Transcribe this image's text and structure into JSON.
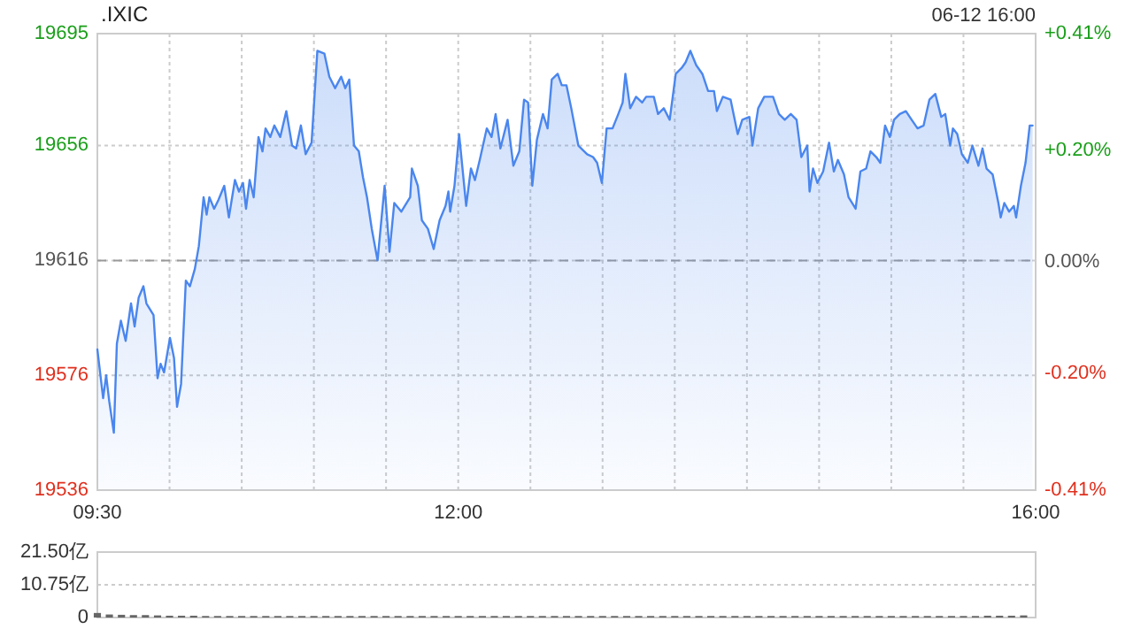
{
  "chart_data": [
    {
      "type": "area",
      "title": ".IXIC",
      "subtitle": "06-12 16:00",
      "xlim": [
        9.5,
        16
      ],
      "xticks": [
        {
          "value": 9.5,
          "label": "09:30"
        },
        {
          "value": 10,
          "label": null
        },
        {
          "value": 10.5,
          "label": null
        },
        {
          "value": 11,
          "label": null
        },
        {
          "value": 11.5,
          "label": null
        },
        {
          "value": 12,
          "label": "12:00"
        },
        {
          "value": 12.5,
          "label": null
        },
        {
          "value": 13,
          "label": null
        },
        {
          "value": 13.5,
          "label": null
        },
        {
          "value": 14,
          "label": null
        },
        {
          "value": 14.5,
          "label": null
        },
        {
          "value": 15,
          "label": null
        },
        {
          "value": 15.5,
          "label": null
        },
        {
          "value": 16,
          "label": "16:00"
        }
      ],
      "ylim": [
        19536,
        19695
      ],
      "yticks": [
        19536,
        19576,
        19616,
        19656,
        19695
      ],
      "y2lim": [
        -0.41,
        0.41
      ],
      "y2ticks": [
        {
          "value": -0.41,
          "label": "-0.41%"
        },
        {
          "value": -0.2,
          "label": "-0.20%"
        },
        {
          "value": 0,
          "label": "0.00%"
        },
        {
          "value": 0.2,
          "label": "+0.20%"
        },
        {
          "value": 0.41,
          "label": "+0.41%"
        }
      ],
      "grid": true,
      "ref_lines": [
        {
          "axis": "y",
          "value": 19616,
          "line_style": "dashed",
          "color": "#999999"
        }
      ],
      "series": [
        {
          "color": "#4a86ee",
          "x": [
            9.5,
            9.54,
            9.561,
            9.582,
            9.614,
            9.635,
            9.663,
            9.696,
            9.733,
            9.758,
            9.786,
            9.819,
            9.84,
            9.889,
            9.917,
            9.938,
            9.962,
            10.003,
            10.031,
            10.052,
            10.08,
            10.113,
            10.141,
            10.175,
            10.203,
            10.236,
            10.257,
            10.276,
            10.309,
            10.338,
            10.379,
            10.411,
            10.453,
            10.481,
            10.509,
            10.53,
            10.555,
            10.583,
            10.616,
            10.644,
            10.665,
            10.698,
            10.726,
            10.767,
            10.809,
            10.849,
            10.877,
            10.91,
            10.943,
            10.984,
            11.024,
            11.073,
            11.107,
            11.147,
            11.189,
            11.217,
            11.245,
            11.278,
            11.311,
            11.34,
            11.368,
            11.401,
            11.441,
            11.49,
            11.524,
            11.557,
            11.606,
            11.667,
            11.679,
            11.72,
            11.748,
            11.79,
            11.83,
            11.871,
            11.912,
            11.932,
            11.944,
            11.974,
            12.006,
            12.055,
            12.088,
            12.116,
            12.149,
            12.198,
            12.231,
            12.259,
            12.292,
            12.342,
            12.382,
            12.423,
            12.456,
            12.484,
            12.513,
            12.545,
            12.587,
            12.619,
            12.648,
            12.689,
            12.717,
            12.75,
            12.783,
            12.832,
            12.893,
            12.934,
            12.962,
            12.995,
            13.028,
            13.069,
            13.109,
            13.139,
            13.158,
            13.191,
            13.232,
            13.274,
            13.302,
            13.355,
            13.384,
            13.424,
            13.465,
            13.507,
            13.547,
            13.575,
            13.608,
            13.649,
            13.691,
            13.731,
            13.772,
            13.792,
            13.833,
            13.887,
            13.936,
            13.968,
            14.017,
            14.038,
            14.078,
            14.12,
            14.181,
            14.222,
            14.262,
            14.304,
            14.344,
            14.377,
            14.418,
            14.434,
            14.458,
            14.488,
            14.528,
            14.569,
            14.602,
            14.63,
            14.672,
            14.704,
            14.753,
            14.786,
            14.826,
            14.856,
            14.896,
            14.924,
            14.957,
            14.99,
            15.019,
            15.059,
            15.101,
            15.141,
            15.182,
            15.224,
            15.264,
            15.305,
            15.346,
            15.374,
            15.408,
            15.427,
            15.457,
            15.489,
            15.53,
            15.562,
            15.604,
            15.632,
            15.66,
            15.702,
            15.742,
            15.758,
            15.783,
            15.816,
            15.849,
            15.865,
            15.898,
            15.93,
            15.959,
            15.979
          ],
          "values": [
            19585,
            19568,
            19576,
            19567,
            19556,
            19587,
            19595,
            19588,
            19601,
            19593,
            19603,
            19607,
            19601,
            19597,
            19575,
            19580,
            19577,
            19589,
            19582,
            19565,
            19573,
            19609,
            19607,
            19613,
            19621,
            19638,
            19632,
            19638,
            19634,
            19637,
            19642,
            19631,
            19644,
            19640,
            19643,
            19634,
            19644,
            19638,
            19659,
            19654,
            19662,
            19659,
            19663,
            19659,
            19668,
            19656,
            19655,
            19663,
            19653,
            19657,
            19689,
            19688,
            19680,
            19676,
            19680,
            19676,
            19679,
            19656,
            19654,
            19645,
            19638,
            19627,
            19616,
            19642,
            19619,
            19636,
            19633,
            19638,
            19648,
            19642,
            19630,
            19627,
            19620,
            19630,
            19635,
            19640,
            19633,
            19642,
            19660,
            19635,
            19648,
            19644,
            19651,
            19662,
            19659,
            19667,
            19655,
            19665,
            19649,
            19654,
            19672,
            19671,
            19642,
            19658,
            19667,
            19662,
            19679,
            19681,
            19677,
            19677,
            19669,
            19656,
            19653,
            19652,
            19650,
            19643,
            19662,
            19662,
            19667,
            19671,
            19681,
            19669,
            19673,
            19671,
            19673,
            19673,
            19667,
            19669,
            19665,
            19681,
            19683,
            19685,
            19689,
            19684,
            19681,
            19675,
            19675,
            19668,
            19673,
            19672,
            19660,
            19665,
            19666,
            19656,
            19669,
            19673,
            19673,
            19667,
            19665,
            19667,
            19665,
            19652,
            19656,
            19640,
            19648,
            19643,
            19647,
            19657,
            19647,
            19651,
            19646,
            19638,
            19634,
            19647,
            19648,
            19654,
            19652,
            19650,
            19663,
            19659,
            19665,
            19667,
            19668,
            19665,
            19662,
            19663,
            19672,
            19674,
            19666,
            19667,
            19656,
            19662,
            19660,
            19653,
            19650,
            19656,
            19649,
            19655,
            19648,
            19646,
            19636,
            19631,
            19636,
            19633,
            19635,
            19631,
            19642,
            19650,
            19663,
            19663
          ]
        }
      ]
    },
    {
      "type": "bar",
      "xlim": [
        9.5,
        16
      ],
      "ylim": [
        0,
        21.5
      ],
      "yticks": [
        0,
        {
          "value": 10.75,
          "label": "10.75亿"
        },
        {
          "value": 21.5,
          "label": "21.50亿"
        }
      ],
      "grid": "y",
      "tick_labels": "y",
      "series": [
        {
          "color": "#666666",
          "x": [
            9.5,
            9.583,
            9.667,
            9.75,
            9.833,
            9.917,
            10,
            10.083,
            10.167,
            10.25,
            10.333,
            10.417,
            10.5,
            10.583,
            10.667,
            10.75,
            10.833,
            10.917,
            11,
            11.083,
            11.167,
            11.25,
            11.333,
            11.417,
            11.5,
            11.583,
            11.667,
            11.75,
            11.833,
            11.917,
            12,
            12.083,
            12.167,
            12.25,
            12.333,
            12.417,
            12.5,
            12.583,
            12.667,
            12.75,
            12.833,
            12.917,
            13,
            13.083,
            13.167,
            13.25,
            13.333,
            13.417,
            13.5,
            13.583,
            13.667,
            13.75,
            13.833,
            13.917,
            14,
            14.083,
            14.167,
            14.25,
            14.333,
            14.417,
            14.5,
            14.583,
            14.667,
            14.75,
            14.833,
            14.917,
            15,
            15.083,
            15.167,
            15.25,
            15.333,
            15.417,
            15.5,
            15.583,
            15.667,
            15.75,
            15.833,
            15.917
          ],
          "values": [
            1.5,
            1.0,
            0.9,
            0.8,
            0.8,
            0.7,
            0.6,
            0.6,
            0.6,
            0.5,
            0.5,
            0.5,
            0.5,
            0.5,
            0.5,
            0.5,
            0.5,
            0.5,
            0.5,
            0.5,
            0.5,
            0.5,
            0.5,
            0.5,
            0.5,
            0.5,
            0.5,
            0.5,
            0.5,
            0.5,
            0.5,
            0.5,
            0.5,
            0.5,
            0.5,
            0.5,
            0.5,
            0.5,
            0.5,
            0.5,
            0.5,
            0.5,
            0.5,
            0.5,
            0.5,
            0.5,
            0.5,
            0.5,
            0.5,
            0.5,
            0.5,
            0.5,
            0.5,
            0.5,
            0.5,
            0.5,
            0.5,
            0.5,
            0.5,
            0.5,
            0.5,
            0.5,
            0.5,
            0.5,
            0.5,
            0.5,
            0.5,
            0.5,
            0.5,
            0.5,
            0.5,
            0.5,
            0.5,
            0.5,
            0.6,
            0.6,
            0.6,
            0.7
          ]
        }
      ]
    }
  ]
}
